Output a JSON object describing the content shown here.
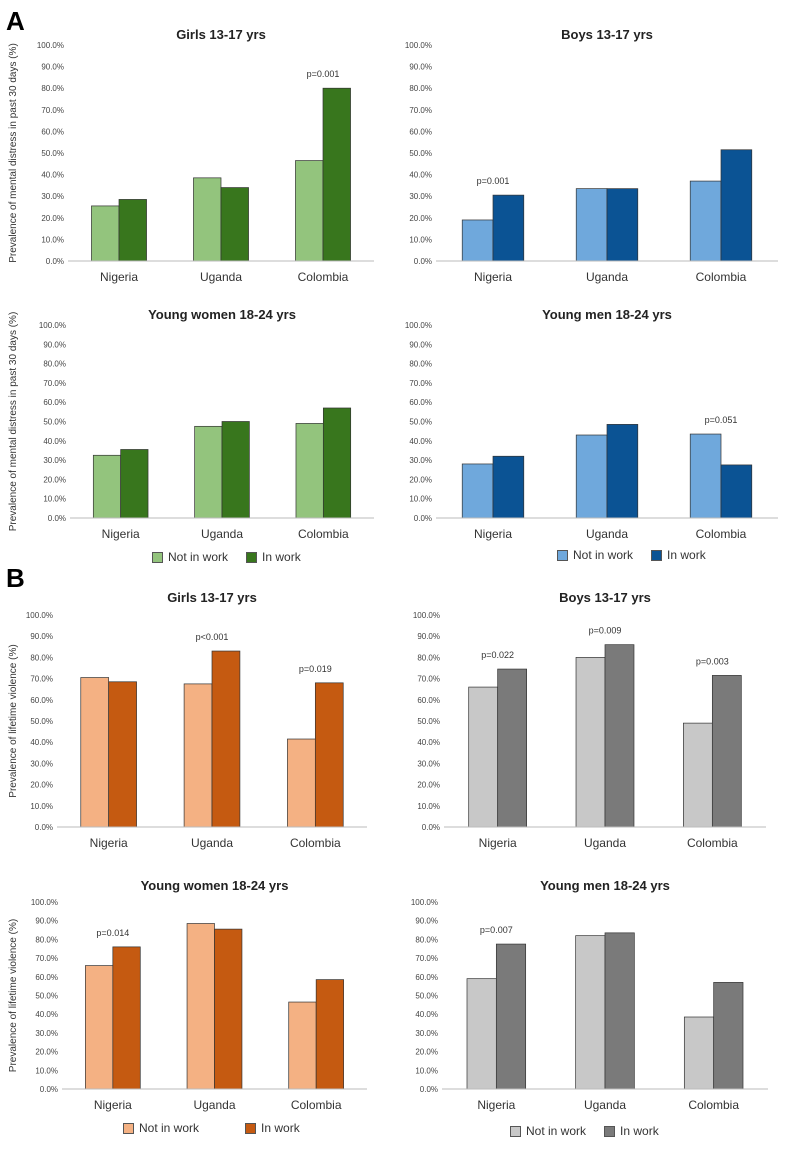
{
  "section_labels": {
    "a": "A",
    "b": "B"
  },
  "legends": {
    "green": {
      "not_in_work": "Not in work",
      "in_work": "In work"
    },
    "blue": {
      "not_in_work": "Not in work",
      "in_work": "In work"
    },
    "orange": {
      "not_in_work": "Not in work",
      "in_work": "In work"
    },
    "gray": {
      "not_in_work": "Not in work",
      "in_work": "In work"
    }
  },
  "colors": {
    "green_light": "#93C47D",
    "green_dark": "#38761D",
    "blue_light": "#6FA8DC",
    "blue_dark": "#0B5394",
    "orange_light": "#F4B183",
    "orange_dark": "#C55A11",
    "gray_light": "#C8C8C8",
    "gray_dark": "#7A7A7A"
  },
  "chart_data": [
    {
      "id": "a-girls",
      "type": "bar",
      "title": "Girls 13-17 yrs",
      "ylabel": "Prevalence of mental distress in past 30 days (%)",
      "categories": [
        "Nigeria",
        "Uganda",
        "Colombia"
      ],
      "series": [
        {
          "name": "Not in work",
          "values": [
            25.5,
            38.5,
            46.5
          ]
        },
        {
          "name": "In work",
          "values": [
            28.5,
            34.0,
            80.0
          ]
        }
      ],
      "annotations": [
        {
          "category": "Colombia",
          "text": "p=0.001"
        }
      ],
      "ylim": [
        0,
        100
      ],
      "yticks": [
        "0.0%",
        "10.0%",
        "20.0%",
        "30.0%",
        "40.0%",
        "50.0%",
        "60.0%",
        "70.0%",
        "80.0%",
        "90.0%",
        "100.0%"
      ]
    },
    {
      "id": "a-boys",
      "type": "bar",
      "title": "Boys 13-17 yrs",
      "ylabel": "",
      "categories": [
        "Nigeria",
        "Uganda",
        "Colombia"
      ],
      "series": [
        {
          "name": "Not in work",
          "values": [
            19.0,
            33.5,
            37.0
          ]
        },
        {
          "name": "In work",
          "values": [
            30.5,
            33.5,
            51.5
          ]
        }
      ],
      "annotations": [
        {
          "category": "Nigeria",
          "text": "p=0.001"
        }
      ],
      "ylim": [
        0,
        100
      ],
      "yticks": [
        "0.0%",
        "10.0%",
        "20.0%",
        "30.0%",
        "40.0%",
        "50.0%",
        "60.0%",
        "70.0%",
        "80.0%",
        "90.0%",
        "100.0%"
      ]
    },
    {
      "id": "a-women",
      "type": "bar",
      "title": "Young women 18-24 yrs",
      "ylabel": "Prevalence of mental distress in past 30 days (%)",
      "categories": [
        "Nigeria",
        "Uganda",
        "Colombia"
      ],
      "series": [
        {
          "name": "Not in work",
          "values": [
            32.5,
            47.5,
            49.0
          ]
        },
        {
          "name": "In work",
          "values": [
            35.5,
            50.0,
            57.0
          ]
        }
      ],
      "annotations": [],
      "ylim": [
        0,
        100
      ],
      "yticks": [
        "0.0%",
        "10.0%",
        "20.0%",
        "30.0%",
        "40.0%",
        "50.0%",
        "60.0%",
        "70.0%",
        "80.0%",
        "90.0%",
        "100.0%"
      ]
    },
    {
      "id": "a-men",
      "type": "bar",
      "title": "Young men 18-24 yrs",
      "ylabel": "",
      "categories": [
        "Nigeria",
        "Uganda",
        "Colombia"
      ],
      "series": [
        {
          "name": "Not in work",
          "values": [
            28.0,
            43.0,
            43.5
          ]
        },
        {
          "name": "In work",
          "values": [
            32.0,
            48.5,
            27.5
          ]
        }
      ],
      "annotations": [
        {
          "category": "Colombia",
          "text": "p=0.051"
        }
      ],
      "ylim": [
        0,
        100
      ],
      "yticks": [
        "0.0%",
        "10.0%",
        "20.0%",
        "30.0%",
        "40.0%",
        "50.0%",
        "60.0%",
        "70.0%",
        "80.0%",
        "90.0%",
        "100.0%"
      ]
    },
    {
      "id": "b-girls",
      "type": "bar",
      "title": "Girls 13-17 yrs",
      "ylabel": "Prevalence of lifetime violence (%)",
      "categories": [
        "Nigeria",
        "Uganda",
        "Colombia"
      ],
      "series": [
        {
          "name": "Not in work",
          "values": [
            70.5,
            67.5,
            41.5
          ]
        },
        {
          "name": "In work",
          "values": [
            68.5,
            83.0,
            68.0
          ]
        }
      ],
      "annotations": [
        {
          "category": "Uganda",
          "text": "p<0.001"
        },
        {
          "category": "Colombia",
          "text": "p=0.019"
        }
      ],
      "ylim": [
        0,
        100
      ],
      "yticks": [
        "0.0%",
        "10.0%",
        "20.0%",
        "30.0%",
        "40.0%",
        "50.0%",
        "60.0%",
        "70.0%",
        "80.0%",
        "90.0%",
        "100.0%"
      ]
    },
    {
      "id": "b-boys",
      "type": "bar",
      "title": "Boys 13-17 yrs",
      "ylabel": "",
      "categories": [
        "Nigeria",
        "Uganda",
        "Colombia"
      ],
      "series": [
        {
          "name": "Not in work",
          "values": [
            66.0,
            80.0,
            49.0
          ]
        },
        {
          "name": "In work",
          "values": [
            74.5,
            86.0,
            71.5
          ]
        }
      ],
      "annotations": [
        {
          "category": "Nigeria",
          "text": "p=0.022"
        },
        {
          "category": "Uganda",
          "text": "p=0.009"
        },
        {
          "category": "Colombia",
          "text": "p=0.003"
        }
      ],
      "ylim": [
        0,
        100
      ],
      "yticks": [
        "0.0%",
        "10.0%",
        "20.0%",
        "30.0%",
        "40.0%",
        "50.0%",
        "60.0%",
        "70.0%",
        "80.0%",
        "90.0%",
        "100.0%"
      ]
    },
    {
      "id": "b-women",
      "type": "bar",
      "title": "Young women 18-24 yrs",
      "ylabel": "Prevalence of lifetime violence (%)",
      "categories": [
        "Nigeria",
        "Uganda",
        "Colombia"
      ],
      "series": [
        {
          "name": "Not in work",
          "values": [
            66.0,
            88.5,
            46.5
          ]
        },
        {
          "name": "In work",
          "values": [
            76.0,
            85.5,
            58.5
          ]
        }
      ],
      "annotations": [
        {
          "category": "Nigeria",
          "text": "p=0.014"
        }
      ],
      "ylim": [
        0,
        100
      ],
      "yticks": [
        "0.0%",
        "10.0%",
        "20.0%",
        "30.0%",
        "40.0%",
        "50.0%",
        "60.0%",
        "70.0%",
        "80.0%",
        "90.0%",
        "100.0%"
      ]
    },
    {
      "id": "b-men",
      "type": "bar",
      "title": "Young men 18-24 yrs",
      "ylabel": "",
      "categories": [
        "Nigeria",
        "Uganda",
        "Colombia"
      ],
      "series": [
        {
          "name": "Not in work",
          "values": [
            59.0,
            82.0,
            38.5
          ]
        },
        {
          "name": "In work",
          "values": [
            77.5,
            83.5,
            57.0
          ]
        }
      ],
      "annotations": [
        {
          "category": "Nigeria",
          "text": "p=0.007"
        }
      ],
      "ylim": [
        0,
        100
      ],
      "yticks": [
        "0.0%",
        "10.0%",
        "20.0%",
        "30.0%",
        "40.0%",
        "50.0%",
        "60.0%",
        "70.0%",
        "80.0%",
        "90.0%",
        "100.0%"
      ]
    }
  ]
}
